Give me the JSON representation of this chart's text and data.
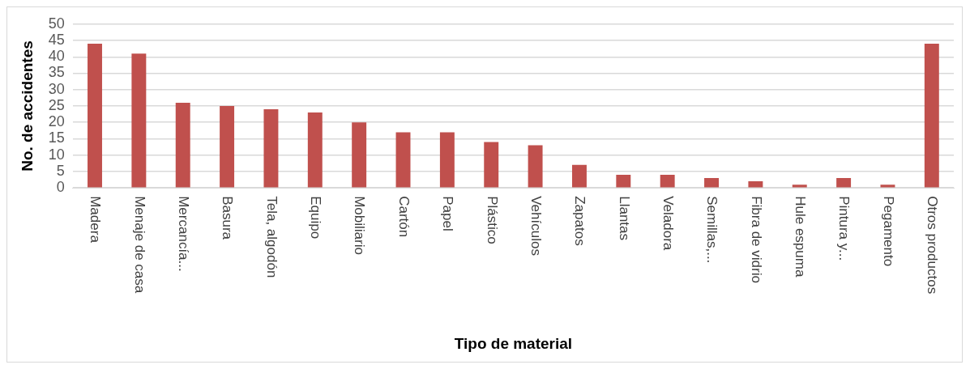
{
  "chart_data": {
    "type": "bar",
    "xlabel": "Tipo de material",
    "ylabel": "No. de accidentes",
    "categories": [
      "Madera",
      "Menaje de casa",
      "Mercancía...",
      "Basura",
      "Tela, algodón",
      "Equipo",
      "Mobiliario",
      "Cartón",
      "Papel",
      "Plástico",
      "Vehículos",
      "Zapatos",
      "Llantas",
      "Veladora",
      "Semillas,...",
      "Fibra de vidrio",
      "Hule espuma",
      "Pintura y...",
      "Pegamento",
      "Otros productos"
    ],
    "values": [
      44,
      41,
      26,
      25,
      24,
      23,
      20,
      17,
      17,
      14,
      13,
      7,
      4,
      4,
      3,
      2,
      1,
      3,
      1,
      44
    ],
    "color": "#c0504d",
    "ylim": [
      0,
      50
    ],
    "yticks": [
      0,
      5,
      10,
      15,
      20,
      25,
      30,
      35,
      40,
      45,
      50
    ],
    "grid": "y",
    "legend": false
  }
}
